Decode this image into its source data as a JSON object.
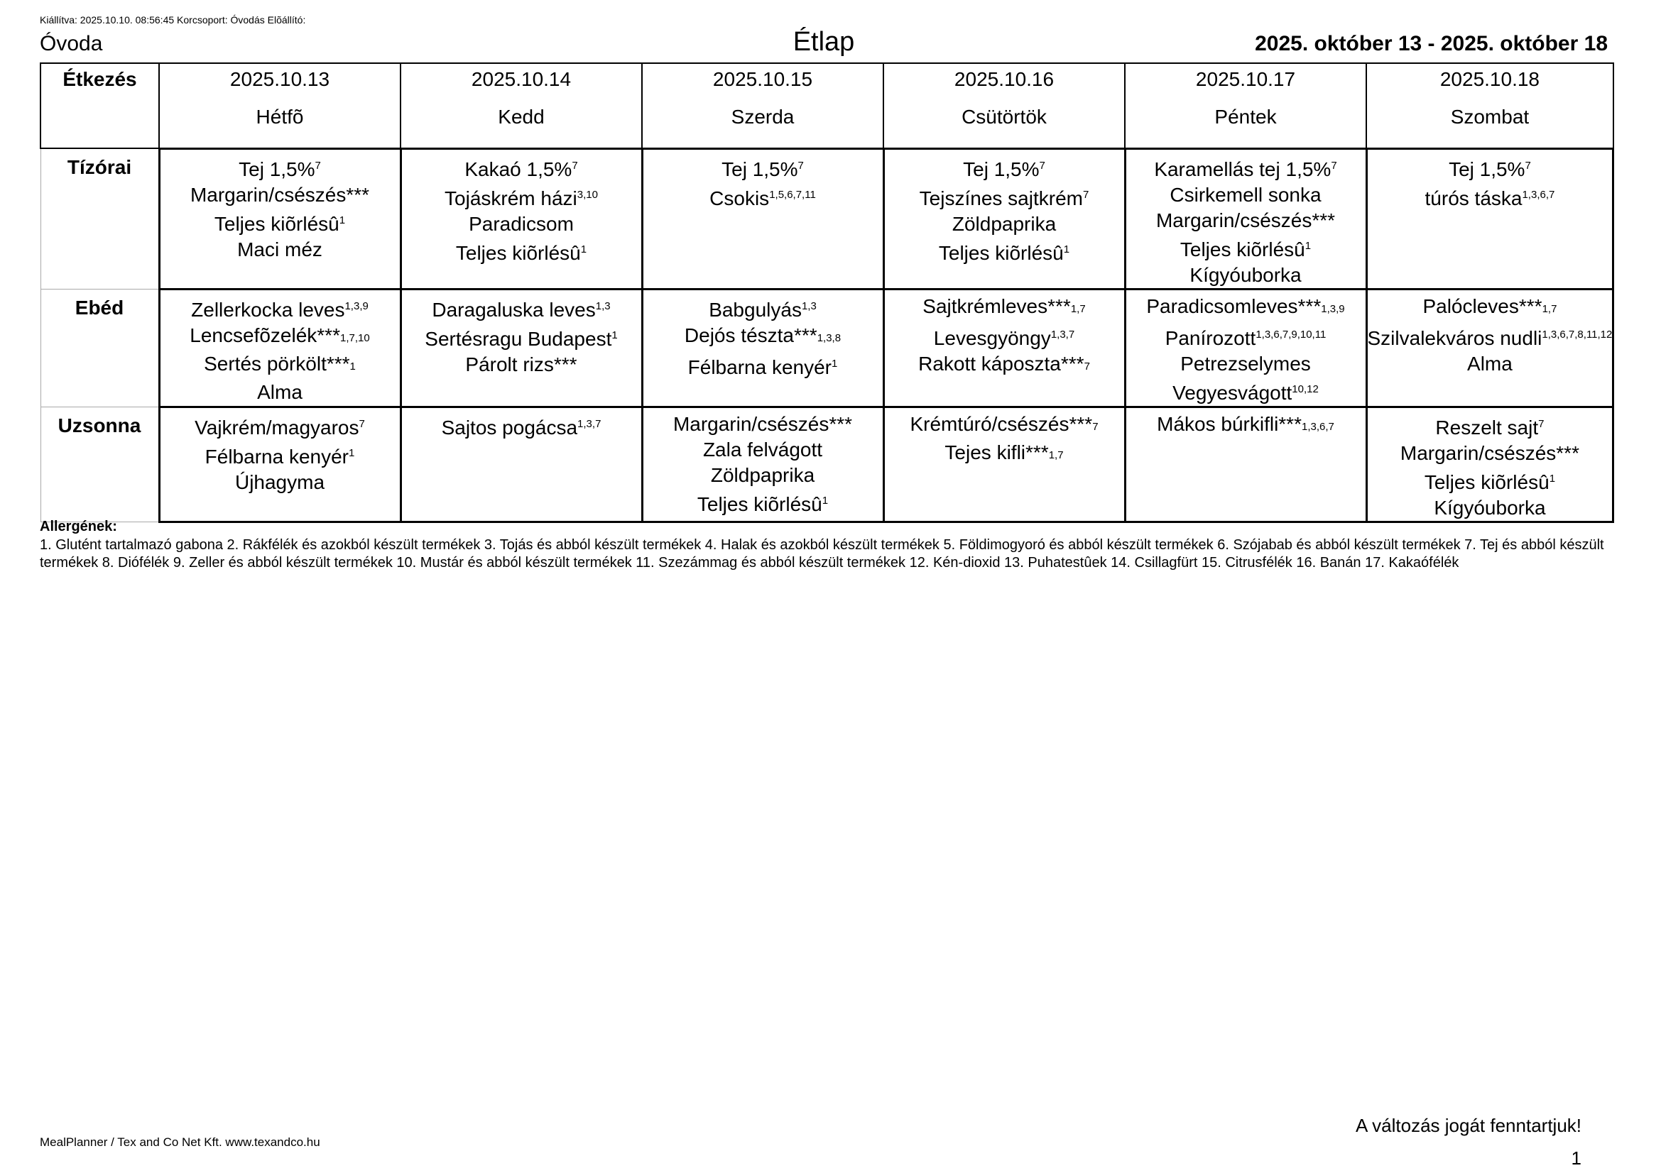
{
  "meta_line": "Kiállítva: 2025.10.10. 08:56:45 Korcsoport: Óvodás Elõállító:",
  "header": {
    "org": "Óvoda",
    "title": "Étlap",
    "date_range": "2025. október 13 - 2025. október 18"
  },
  "table": {
    "corner_label": "Étkezés",
    "columns": [
      {
        "date": "2025.10.13",
        "day": "Hétfõ"
      },
      {
        "date": "2025.10.14",
        "day": "Kedd"
      },
      {
        "date": "2025.10.15",
        "day": "Szerda"
      },
      {
        "date": "2025.10.16",
        "day": "Csütörtök"
      },
      {
        "date": "2025.10.17",
        "day": "Péntek"
      },
      {
        "date": "2025.10.18",
        "day": "Szombat"
      }
    ],
    "rows": [
      {
        "label": "Tízórai",
        "cells": [
          [
            "Tej 1,5%^7",
            "Margarin/csészés***",
            "Teljes kiõrlésû^1",
            "Maci méz"
          ],
          [
            "Kakaó 1,5%^7",
            "Tojáskrém házi^3,10",
            "Paradicsom",
            "Teljes kiõrlésû^1"
          ],
          [
            "Tej 1,5%^7",
            "Csokis^1,5,6,7,11"
          ],
          [
            "Tej 1,5%^7",
            "Tejszínes sajtkrém^7",
            "Zöldpaprika",
            "Teljes kiõrlésû^1"
          ],
          [
            "Karamellás tej 1,5%^7",
            "Csirkemell sonka",
            "Margarin/csészés***",
            "Teljes kiõrlésû^1",
            "Kígyóuborka"
          ],
          [
            "Tej 1,5%^7",
            "túrós táska^1,3,6,7"
          ]
        ]
      },
      {
        "label": "Ebéd",
        "cells": [
          [
            "Zellerkocka leves^1,3,9",
            "Lencsefõzelék***^1,7,10",
            "Sertés pörkölt***^1",
            "Alma"
          ],
          [
            "Daragaluska leves^1,3",
            "Sertésragu Budapest^1",
            "Párolt rizs***"
          ],
          [
            "Babgulyás^1,3",
            "Dejós tészta***^1,3,8",
            "Félbarna kenyér^1"
          ],
          [
            "Sajtkrémleves***^1,7",
            "Levesgyöngy^1,3,7",
            "Rakott káposzta***^7"
          ],
          [
            "Paradicsomleves***^1,3,9",
            "Panírozott^1,3,6,7,9,10,11",
            "Petrezselymes",
            "Vegyesvágott^10,12"
          ],
          [
            "Palócleves***^1,7",
            "Szilvalekváros nudli^1,3,6,7,8,11,12",
            "Alma"
          ]
        ]
      },
      {
        "label": "Uzsonna",
        "cells": [
          [
            "Vajkrém/magyaros^7",
            "Félbarna kenyér^1",
            "Újhagyma"
          ],
          [
            "Sajtos pogácsa^1,3,7"
          ],
          [
            "Margarin/csészés***",
            "Zala felvágott",
            "Zöldpaprika",
            "Teljes kiõrlésû^1"
          ],
          [
            "Krémtúró/csészés***^7",
            "Tejes kifli***^1,7"
          ],
          [
            "Mákos búrkifli***^1,3,6,7"
          ],
          [
            "Reszelt sajt^7",
            "Margarin/csészés***",
            "Teljes kiõrlésû^1",
            "Kígyóuborka"
          ]
        ]
      }
    ]
  },
  "allergens": {
    "title": "Allergének:",
    "text": "1. Glutént tartalmazó gabona 2. Rákfélék és azokból készült termékek 3. Tojás és abból készült termékek 4. Halak és azokból készült termékek 5. Földimogyoró és abból készült termékek 6. Szójabab és abból készült termékek 7. Tej és abból készült termékek 8. Diófélék 9. Zeller és abból készült termékek 10. Mustár és abból készült termékek 11. Szezámmag és abból készült termékek 12. Kén-dioxid 13. Puhatestûek 14. Csillagfürt 15. Citrusfélék 16. Banán 17. Kakaófélék"
  },
  "footer": {
    "brand": "MealPlanner / Tex and Co Net Kft. www.texandco.hu",
    "notice": "A változás jogát fenntartjuk!",
    "page": "1"
  }
}
